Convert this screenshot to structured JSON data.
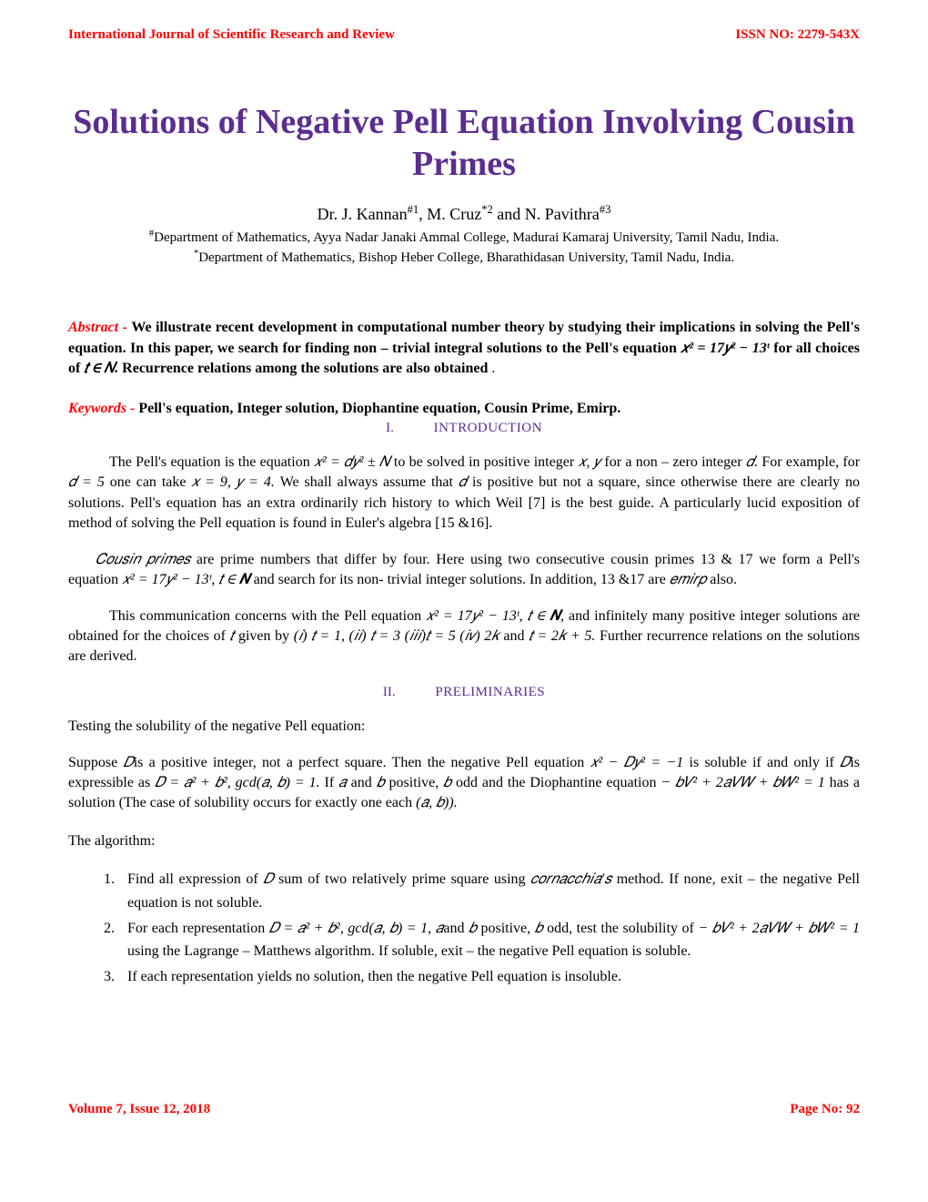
{
  "header": {
    "journal_name": "International Journal of Scientific Research and Review",
    "issn": "ISSN NO: 2279-543X"
  },
  "title": "Solutions of Negative Pell Equation Involving Cousin Primes",
  "authors_line": "Dr. J. Kannan",
  "authors_sup1": "#1",
  "authors_mid2": ", M. Cruz",
  "authors_sup2": "*2",
  "authors_mid3": "  and N. Pavithra",
  "authors_sup3": "#3",
  "affiliation1_prefix": "#",
  "affiliation1": "Department of Mathematics, Ayya Nadar Janaki Ammal College, Madurai Kamaraj University, Tamil Nadu, India.",
  "affiliation2_prefix": "*",
  "affiliation2": "Department of Mathematics, Bishop Heber  College, Bharathidasan University, Tamil Nadu, India.",
  "abstract": {
    "label": "Abstract -",
    "text_1": "We illustrate recent development in computational number theory by studying their implications in solving the Pell's equation. In this paper, we search for finding non – trivial integral solutions to the Pell's equation ",
    "eq": "𝑥² = 17𝑦² − 13ᵗ",
    "text_2": " for all choices of ",
    "t_in_N": "𝑡 ∈ 𝑁. ",
    "text_3": "Recurrence relations among the solutions are also obtained"
  },
  "keywords": {
    "label": "Keywords - ",
    "text": "Pell's equation, Integer solution, Diophantine equation, Cousin Prime, Emirp."
  },
  "sections": {
    "intro": {
      "num": "I.",
      "label": "INTRODUCTION"
    },
    "prelim": {
      "num": "II.",
      "label": "PRELIMINARIES"
    }
  },
  "intro_paras": {
    "p1_a": "The Pell's equation is the equation ",
    "p1_eq1": "𝑥² = 𝑑𝑦² ± 𝑁",
    "p1_b": "  to be solved in positive integer ",
    "p1_xy": "𝑥, 𝑦",
    "p1_c": " for a non – zero integer ",
    "p1_d": "𝑑. ",
    "p1_e": "For example, for ",
    "p1_eq2": "𝑑 = 5",
    "p1_f": " one can take ",
    "p1_eq3": " 𝑥 = 9, 𝑦 = 4. ",
    "p1_g": "We shall always assume that ",
    "p1_dd": "𝑑 ",
    "p1_h": "is positive but not a square, since otherwise there are clearly no solutions.  Pell's equation has an extra ordinarily rich history to which Weil [7] is the best guide. A particularly lucid exposition of method of solving the Pell equation is found in Euler's algebra [15 &16].",
    "p2_cp": "𝐶𝑜𝑢𝑠𝑖𝑛 𝑝𝑟𝑖𝑚𝑒𝑠 ",
    "p2_a": "are prime numbers that differ by four. Here using two consecutive cousin primes ",
    "p2_1317": "13 & 17",
    "p2_b": " we form a Pell's equation ",
    "p2_eq": "𝑥² = 17𝑦² − 13ᵗ,  𝑡 ∈ 𝑵",
    "p2_c": "  and search for its non- trivial integer solutions. In addition, ",
    "p2_1317b": "13 &17",
    "p2_d": " are ",
    "p2_emirp": "𝑒𝑚𝑖𝑟𝑝",
    "p2_e": "  also.",
    "p3_a": "This communication concerns with the Pell equation ",
    "p3_eq": " 𝑥² = 17𝑦² − 13ᵗ, 𝑡 ∈ 𝑵,",
    "p3_b": "   and infinitely many positive integer solutions are obtained for the choices of ",
    "p3_t": " 𝑡 ",
    "p3_c": "given by  ",
    "p3_cases": "(𝑖) 𝑡 = 1,  (𝑖𝑖) 𝑡 = 3    (𝑖𝑖𝑖)𝑡 = 5   (𝑖𝑣) 2𝑘",
    "p3_d": " and ",
    "p3_eq2": "𝑡 = 2𝑘 + 5. ",
    "p3_e": "Further recurrence relations on the solutions are derived."
  },
  "prelim": {
    "test_line": "Testing the solubility of the negative Pell equation:",
    "suppose_a": "Suppose ",
    "suppose_D": "𝐷",
    "suppose_b": "is a positive integer, not a perfect square. Then the negative Pell equation ",
    "suppose_eq1": "𝑥² − 𝐷𝑦² = −1",
    "suppose_c": " is soluble if and only if ",
    "suppose_D2": "𝐷",
    "suppose_d": "is expressible as ",
    "suppose_eq2": "𝐷 = 𝑎² + 𝑏², gcd(𝑎, 𝑏) = 1.",
    "suppose_e": " If  ",
    "suppose_a_var": "𝑎",
    "suppose_f": " and ",
    "suppose_b_var": "𝑏",
    "suppose_g": " positive, ",
    "suppose_b_var2": "𝑏",
    "suppose_h": " odd and the Diophantine equation ",
    "suppose_eq3": "− 𝑏𝑉² + 2𝑎𝑉𝑊 + 𝑏𝑊² = 1",
    "suppose_i": " has a solution (The case of solubility occurs for exactly one each ",
    "suppose_ab": "(𝑎, 𝑏)).",
    "algo_label": "The algorithm:",
    "algo1_a": "Find all expression of ",
    "algo1_D": "𝐷",
    "algo1_b": " sum of two relatively prime square using ",
    "algo1_corn": "𝑐𝑜𝑟𝑛𝑎𝑐𝑐ℎ𝑖𝑎′𝑠 ",
    "algo1_c": "method. If none, exit – the negative Pell equation is not soluble.",
    "algo2_a": "For each representation ",
    "algo2_eq": "𝐷 = 𝑎² + 𝑏², gcd(𝑎, 𝑏) = 1, 𝑎",
    "algo2_b": "and ",
    "algo2_bvar": "𝑏",
    "algo2_c": " positive, ",
    "algo2_bvar2": "𝑏",
    "algo2_d": " odd, test the solubility of ",
    "algo2_eq2": "− 𝑏𝑉² + 2𝑎𝑉𝑊 + 𝑏𝑊² = 1",
    "algo2_e": " using the Lagrange – Matthews algorithm. If soluble, exit – the negative Pell equation is soluble.",
    "algo3": "If each representation yields no solution, then the negative Pell equation is insoluble."
  },
  "footer": {
    "volume": "Volume 7, Issue 12, 2018",
    "page": "Page No: 92"
  },
  "colors": {
    "accent_purple": "#5b2d90",
    "accent_red": "#ff0000",
    "text": "#000000",
    "background": "#ffffff"
  }
}
